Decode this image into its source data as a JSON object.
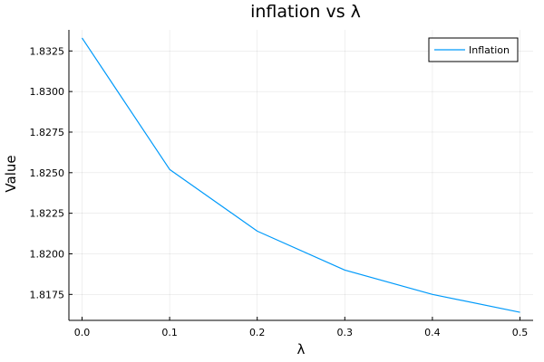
{
  "chart_data": {
    "type": "line",
    "title": "inflation vs λ",
    "xlabel": "λ",
    "ylabel": "Value",
    "xlim": [
      -0.015,
      0.515
    ],
    "ylim": [
      1.8159,
      1.8338
    ],
    "xticks": [
      0.0,
      0.1,
      0.2,
      0.3,
      0.4,
      0.5
    ],
    "xtick_labels": [
      "0.0",
      "0.1",
      "0.2",
      "0.3",
      "0.4",
      "0.5"
    ],
    "yticks": [
      1.8175,
      1.82,
      1.8225,
      1.825,
      1.8275,
      1.83,
      1.8325
    ],
    "ytick_labels": [
      "1.8175",
      "1.8200",
      "1.8225",
      "1.8250",
      "1.8275",
      "1.8300",
      "1.8325"
    ],
    "grid": true,
    "legend_position": "top-right",
    "series": [
      {
        "name": "Inflation",
        "color": "#009AFA",
        "x": [
          0.0,
          0.1,
          0.2,
          0.3,
          0.4,
          0.5
        ],
        "y": [
          1.8333,
          1.8252,
          1.8214,
          1.819,
          1.8175,
          1.8164
        ]
      }
    ]
  }
}
